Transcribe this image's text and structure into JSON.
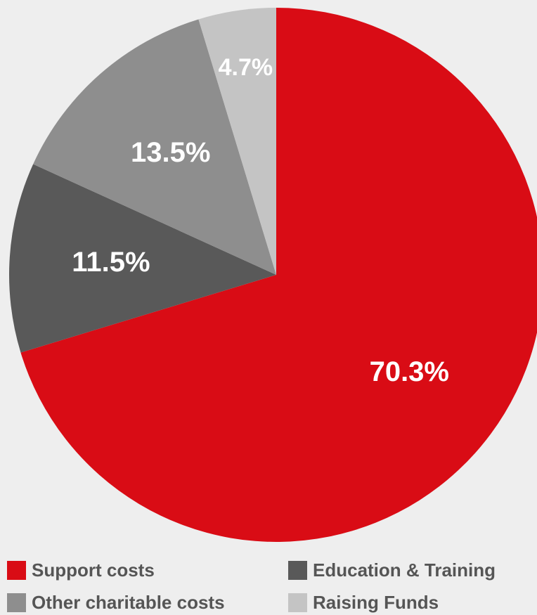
{
  "chart_data": {
    "type": "pie",
    "slices": [
      {
        "name": "Support costs",
        "value": 70.3,
        "label": "70.3%",
        "color": "#d90c15"
      },
      {
        "name": "Education & Training",
        "value": 11.5,
        "label": "11.5%",
        "color": "#595959"
      },
      {
        "name": "Other charitable costs",
        "value": 13.5,
        "label": "13.5%",
        "color": "#8e8e8e"
      },
      {
        "name": "Raising Funds",
        "value": 4.7,
        "label": "4.7%",
        "color": "#c4c4c4"
      }
    ],
    "start_angle_deg": 0,
    "direction": "clockwise",
    "legend_position": "bottom"
  },
  "legend": [
    {
      "label": "Support costs",
      "color": "#d90c15"
    },
    {
      "label": "Education & Training",
      "color": "#595959"
    },
    {
      "label": "Other charitable costs",
      "color": "#8e8e8e"
    },
    {
      "label": "Raising Funds",
      "color": "#c4c4c4"
    }
  ]
}
